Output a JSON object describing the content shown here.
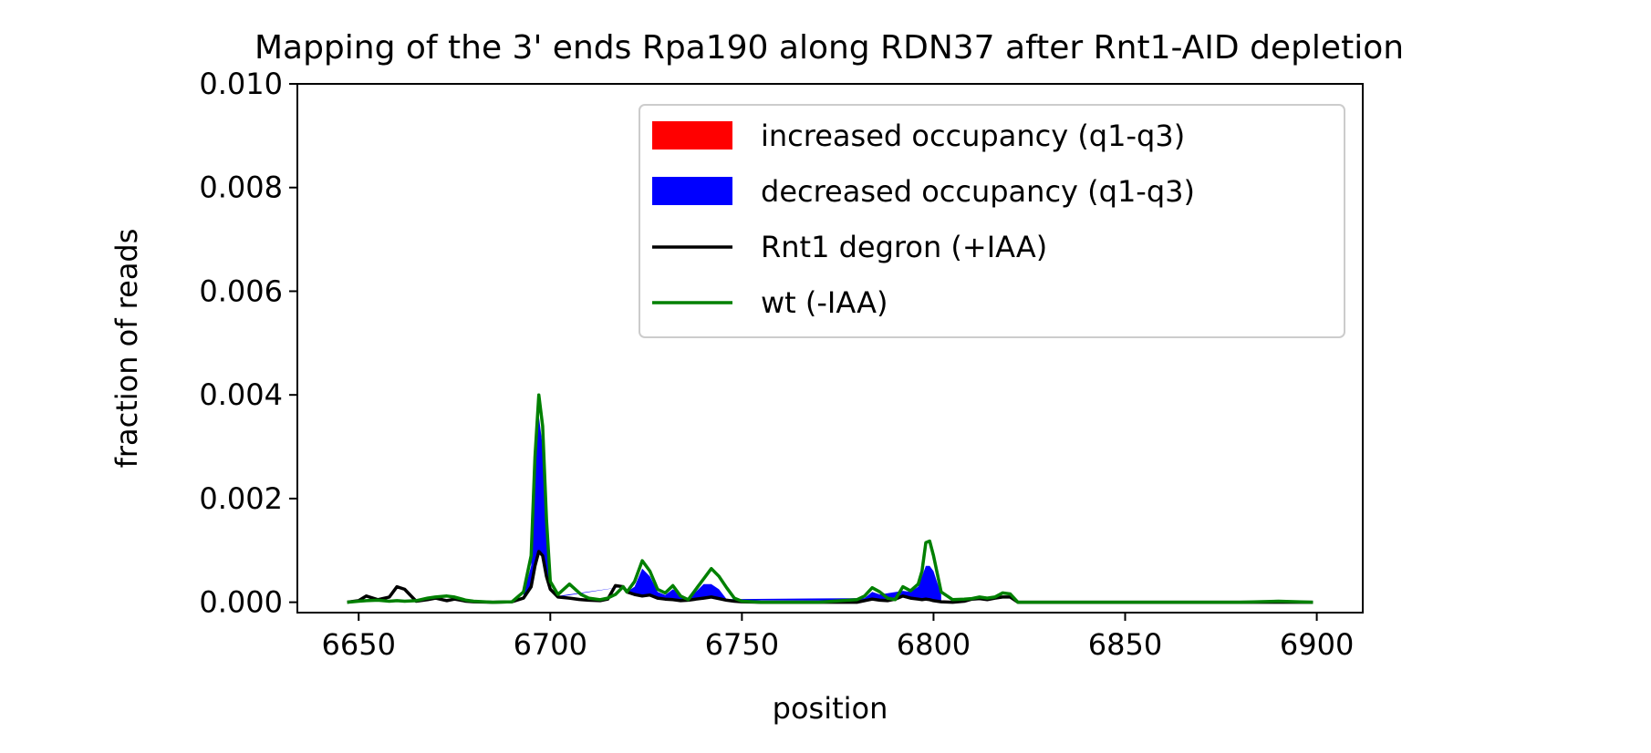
{
  "chart_data": {
    "type": "line",
    "title": "Mapping of the 3' ends Rpa190 along RDN37 after Rnt1-AID depletion",
    "xlabel": "position",
    "ylabel": "fraction of reads",
    "xlim": [
      6634,
      6912
    ],
    "ylim": [
      -0.0002,
      0.01
    ],
    "xticks": [
      6650,
      6700,
      6750,
      6800,
      6850,
      6900
    ],
    "xtick_labels": [
      "6650",
      "6700",
      "6750",
      "6800",
      "6850",
      "6900"
    ],
    "yticks": [
      0,
      0.002,
      0.004,
      0.006,
      0.008,
      0.01
    ],
    "ytick_labels": [
      "0.000",
      "0.002",
      "0.004",
      "0.006",
      "0.008",
      "0.010"
    ],
    "grid": false,
    "legend_position": "top-right",
    "x": [
      6647,
      6650,
      6652,
      6655,
      6658,
      6660,
      6662,
      6665,
      6668,
      6670,
      6673,
      6675,
      6678,
      6680,
      6685,
      6690,
      6693,
      6695,
      6696,
      6697,
      6698,
      6699,
      6700,
      6702,
      6705,
      6708,
      6710,
      6713,
      6715,
      6717,
      6719,
      6720,
      6722,
      6724,
      6726,
      6728,
      6730,
      6732,
      6734,
      6736,
      6738,
      6740,
      6742,
      6744,
      6746,
      6748,
      6750,
      6755,
      6760,
      6770,
      6780,
      6782,
      6784,
      6786,
      6788,
      6790,
      6792,
      6794,
      6796,
      6797,
      6798,
      6799,
      6800,
      6802,
      6805,
      6808,
      6810,
      6812,
      6814,
      6816,
      6818,
      6820,
      6822,
      6825,
      6830,
      6840,
      6850,
      6860,
      6870,
      6880,
      6890,
      6899
    ],
    "series": [
      {
        "name": "Rnt1 degron (+IAA)",
        "color": "#000000",
        "values": [
          0,
          3e-05,
          0.00012,
          5e-05,
          0.0001,
          0.0003,
          0.00025,
          2e-05,
          5e-05,
          8e-05,
          3e-05,
          6e-05,
          2e-05,
          1e-05,
          0,
          1e-05,
          8e-05,
          0.0003,
          0.0007,
          0.00098,
          0.0009,
          0.0005,
          0.00025,
          0.0001,
          8e-05,
          5e-05,
          4e-05,
          3e-05,
          6e-05,
          0.00032,
          0.0003,
          0.0002,
          0.00015,
          0.00012,
          0.00014,
          8e-05,
          6e-05,
          5e-05,
          3e-05,
          4e-05,
          6e-05,
          8e-05,
          0.0001,
          7e-05,
          4e-05,
          2e-05,
          1e-05,
          0,
          0,
          0,
          0,
          3e-05,
          6e-05,
          4e-05,
          3e-05,
          6e-05,
          0.00012,
          8e-05,
          6e-05,
          5e-05,
          6e-05,
          5e-05,
          3e-05,
          1e-05,
          0,
          2e-05,
          6e-05,
          7e-05,
          5e-05,
          8e-05,
          0.0001,
          0.0001,
          0,
          0,
          0,
          0,
          0,
          0,
          0,
          0,
          0,
          0
        ]
      },
      {
        "name": "wt (-IAA)",
        "color": "#008000",
        "values": [
          0,
          2e-05,
          3e-05,
          4e-05,
          2e-05,
          3e-05,
          2e-05,
          3e-05,
          8e-05,
          0.0001,
          0.00012,
          0.0001,
          4e-05,
          2e-05,
          0,
          1e-05,
          0.0002,
          0.0009,
          0.0028,
          0.004,
          0.0034,
          0.0016,
          0.0004,
          0.00015,
          0.00035,
          0.00015,
          8e-05,
          5e-05,
          8e-05,
          0.00015,
          0.0003,
          0.0002,
          0.0004,
          0.0008,
          0.0006,
          0.00025,
          0.00018,
          0.00032,
          0.00012,
          5e-05,
          0.00025,
          0.00045,
          0.00065,
          0.0005,
          0.00028,
          8e-05,
          2e-05,
          0,
          0,
          0,
          5e-05,
          0.00012,
          0.00028,
          0.0002,
          8e-05,
          5e-05,
          0.0003,
          0.00022,
          0.00035,
          0.0006,
          0.00115,
          0.00118,
          0.0009,
          0.0002,
          5e-05,
          6e-05,
          7e-05,
          0.0001,
          8e-05,
          0.0001,
          0.00018,
          0.00016,
          0,
          0,
          0,
          0,
          0,
          0,
          0,
          0,
          2e-05,
          0
        ]
      }
    ],
    "fill_series": [
      {
        "name": "increased occupancy (q1-q3)",
        "color": "#ff0000"
      },
      {
        "name": "decreased occupancy (q1-q3)",
        "color": "#0000ff"
      }
    ],
    "fill_bands": {
      "increased": {
        "x": [],
        "lower": [],
        "upper": []
      },
      "decreased": {
        "x": [
          6693,
          6695,
          6696,
          6697,
          6698,
          6699,
          6700,
          6702,
          6719,
          6720,
          6722,
          6724,
          6726,
          6728,
          6730,
          6732,
          6736,
          6738,
          6740,
          6742,
          6744,
          6746,
          6782,
          6784,
          6786,
          6792,
          6794,
          6796,
          6797,
          6798,
          6799,
          6800,
          6802
        ],
        "lower": [
          8e-05,
          0.0003,
          0.0007,
          0.00098,
          0.0009,
          0.0005,
          0.00025,
          0.0001,
          0.0003,
          0.0002,
          0.00015,
          0.00012,
          0.00014,
          8e-05,
          6e-05,
          5e-05,
          4e-05,
          6e-05,
          8e-05,
          0.0001,
          7e-05,
          4e-05,
          3e-05,
          6e-05,
          4e-05,
          0.00012,
          8e-05,
          6e-05,
          5e-05,
          6e-05,
          5e-05,
          3e-05,
          1e-05
        ],
        "upper": [
          0.00015,
          0.0007,
          0.0024,
          0.0036,
          0.003,
          0.0014,
          0.0003,
          0.00012,
          0.0003,
          0.0002,
          0.0003,
          0.00065,
          0.0005,
          0.0002,
          0.00014,
          0.00025,
          5e-05,
          0.0002,
          0.00035,
          0.00035,
          0.00025,
          6e-05,
          8e-05,
          0.0002,
          0.00015,
          0.00022,
          0.0002,
          0.0003,
          0.0005,
          0.0007,
          0.0007,
          0.0006,
          0.00015
        ]
      }
    }
  }
}
